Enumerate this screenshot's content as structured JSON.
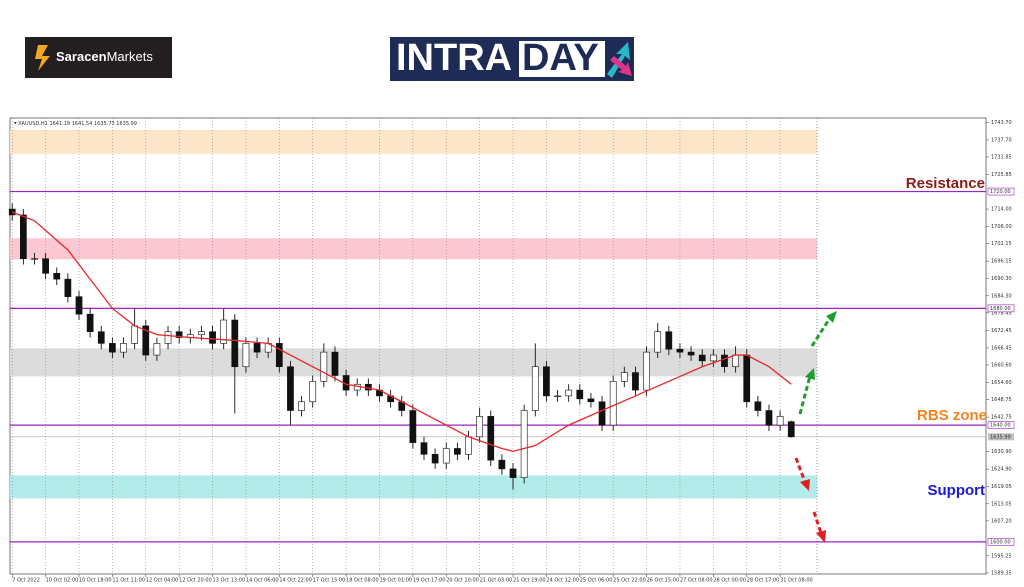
{
  "logos": {
    "brand_bold": "Saracen",
    "brand_light": "Markets",
    "banner_left": "INTRA",
    "banner_right": "DAY"
  },
  "chart_data": {
    "type": "candlestick",
    "symbol": "XAUUSD,H1",
    "up_color": "#ffffff",
    "down_color": "#111111",
    "outline_color": "#111111",
    "x": [
      0,
      1,
      2,
      3,
      4,
      5,
      6,
      7,
      8,
      9,
      10,
      11,
      12,
      13,
      14,
      15,
      16,
      17,
      18,
      19,
      20,
      21,
      22,
      23,
      24,
      25,
      26,
      27,
      28,
      29,
      30,
      31,
      32,
      33,
      34,
      35,
      36,
      37,
      38,
      39,
      40,
      41,
      42,
      43,
      44,
      45,
      46,
      47,
      48,
      49,
      50,
      51,
      52,
      53,
      54,
      55,
      56,
      57,
      58,
      59,
      60,
      61,
      62,
      63,
      64,
      65,
      66,
      67,
      68,
      69,
      70
    ],
    "open": [
      1714,
      1712,
      1697,
      1697,
      1692,
      1690,
      1684,
      1678,
      1672,
      1668,
      1665,
      1668,
      1674,
      1664,
      1668,
      1672,
      1670,
      1671,
      1672,
      1668,
      1676,
      1660,
      1668,
      1665,
      1668,
      1660,
      1645,
      1648,
      1655,
      1665,
      1657,
      1652,
      1654,
      1652,
      1650,
      1648,
      1645,
      1634,
      1630,
      1627,
      1632,
      1630,
      1636,
      1643,
      1628,
      1625,
      1622,
      1645,
      1660,
      1650,
      1650,
      1652,
      1649,
      1648,
      1640,
      1655,
      1658,
      1652,
      1665,
      1672,
      1666,
      1665,
      1664,
      1662,
      1664,
      1660,
      1664,
      1648,
      1645,
      1640,
      1641.18
    ],
    "high": [
      1716,
      1714,
      1699,
      1699,
      1694,
      1692,
      1686,
      1680,
      1674,
      1670,
      1670,
      1680,
      1676,
      1670,
      1674,
      1674,
      1673,
      1674,
      1674,
      1680,
      1678,
      1670,
      1670,
      1670,
      1670,
      1662,
      1650,
      1657,
      1668,
      1667,
      1659,
      1656,
      1656,
      1654,
      1652,
      1650,
      1647,
      1636,
      1632,
      1634,
      1634,
      1638,
      1646,
      1645,
      1630,
      1627,
      1647,
      1668,
      1662,
      1652,
      1654,
      1654,
      1651,
      1650,
      1657,
      1660,
      1660,
      1667,
      1675,
      1674,
      1668,
      1667,
      1666,
      1666,
      1666,
      1667,
      1666,
      1650,
      1647,
      1645,
      1641.54
    ],
    "low": [
      1710,
      1695,
      1695,
      1690,
      1688,
      1682,
      1676,
      1670,
      1666,
      1663,
      1663,
      1666,
      1662,
      1662,
      1666,
      1668,
      1668,
      1669,
      1666,
      1666,
      1644,
      1658,
      1663,
      1663,
      1658,
      1640,
      1643,
      1646,
      1653,
      1655,
      1650,
      1650,
      1650,
      1648,
      1646,
      1643,
      1632,
      1628,
      1625,
      1625,
      1628,
      1628,
      1634,
      1626,
      1623,
      1618,
      1620,
      1643,
      1648,
      1648,
      1648,
      1647,
      1646,
      1638,
      1638,
      1653,
      1650,
      1650,
      1663,
      1664,
      1663,
      1662,
      1660,
      1660,
      1658,
      1658,
      1646,
      1643,
      1638,
      1638,
      1635.73
    ],
    "close": [
      1712,
      1697,
      1697,
      1692,
      1690,
      1684,
      1678,
      1672,
      1668,
      1665,
      1668,
      1674,
      1664,
      1668,
      1672,
      1670,
      1671,
      1672,
      1668,
      1676,
      1660,
      1668,
      1665,
      1668,
      1660,
      1645,
      1648,
      1655,
      1665,
      1657,
      1652,
      1654,
      1652,
      1650,
      1648,
      1645,
      1634,
      1630,
      1627,
      1632,
      1630,
      1636,
      1643,
      1628,
      1625,
      1622,
      1645,
      1660,
      1650,
      1650,
      1652,
      1649,
      1648,
      1640,
      1655,
      1658,
      1652,
      1665,
      1672,
      1666,
      1665,
      1664,
      1662,
      1664,
      1660,
      1664,
      1648,
      1645,
      1640,
      1643,
      1635.99
    ],
    "moving_average": {
      "color": "#e8262a",
      "x": [
        0,
        2,
        5,
        7,
        9,
        11,
        13,
        16,
        20,
        23,
        26,
        28,
        30,
        33,
        35,
        38,
        41,
        44,
        45,
        47,
        50,
        53,
        56,
        59,
        62,
        65,
        66,
        68,
        70
      ],
      "values": [
        1713,
        1710,
        1700,
        1690,
        1680,
        1674,
        1671,
        1670,
        1669,
        1668,
        1662,
        1658,
        1654,
        1652,
        1648,
        1642,
        1636,
        1632,
        1631,
        1633,
        1640,
        1645,
        1650,
        1655,
        1660,
        1664,
        1664,
        1660,
        1654
      ]
    },
    "xlim": [
      -0.2,
      87.5
    ],
    "ylim": [
      1589,
      1745.2
    ],
    "grid": true,
    "xticks": [
      {
        "value": 0,
        "label": "7 Oct 2022"
      },
      {
        "value": 3,
        "label": "10 Oct 02:00"
      },
      {
        "value": 6,
        "label": "10 Oct 18:00"
      },
      {
        "value": 9,
        "label": "11 Oct 11:00"
      },
      {
        "value": 12,
        "label": "12 Oct 04:00"
      },
      {
        "value": 15,
        "label": "12 Oct 20:00"
      },
      {
        "value": 18,
        "label": "13 Oct 13:00"
      },
      {
        "value": 21,
        "label": "14 Oct 06:00"
      },
      {
        "value": 24,
        "label": "14 Oct 22:00"
      },
      {
        "value": 27,
        "label": "17 Oct 15:00"
      },
      {
        "value": 30,
        "label": "18 Oct 08:00"
      },
      {
        "value": 33,
        "label": "19 Oct 01:00"
      },
      {
        "value": 36,
        "label": "19 Oct 17:00"
      },
      {
        "value": 39,
        "label": "20 Oct 10:00"
      },
      {
        "value": 42,
        "label": "21 Oct 03:00"
      },
      {
        "value": 45,
        "label": "21 Oct 19:00"
      },
      {
        "value": 48,
        "label": "24 Oct 12:00"
      },
      {
        "value": 51,
        "label": "25 Oct 06:00"
      },
      {
        "value": 54,
        "label": "25 Oct 22:00"
      },
      {
        "value": 57,
        "label": "26 Oct 15:00"
      },
      {
        "value": 60,
        "label": "27 Oct 08:00"
      },
      {
        "value": 63,
        "label": "28 Oct 00:00"
      },
      {
        "value": 66,
        "label": "28 Oct 17:00"
      },
      {
        "value": 69,
        "label": "31 Oct 08:00"
      }
    ],
    "yticks": [
      {
        "value": 1743.7,
        "label": "1743.70"
      },
      {
        "value": 1737.7,
        "label": "1737.70"
      },
      {
        "value": 1731.85,
        "label": "1731.85"
      },
      {
        "value": 1725.85,
        "label": "1725.85"
      },
      {
        "value": 1714,
        "label": "1714.00"
      },
      {
        "value": 1708,
        "label": "1708.00"
      },
      {
        "value": 1702.15,
        "label": "1702.15"
      },
      {
        "value": 1696.15,
        "label": "1696.15"
      },
      {
        "value": 1690.3,
        "label": "1690.30"
      },
      {
        "value": 1684.3,
        "label": "1684.30"
      },
      {
        "value": 1678.45,
        "label": "1678.45"
      },
      {
        "value": 1672.45,
        "label": "1672.45"
      },
      {
        "value": 1666.45,
        "label": "1666.45"
      },
      {
        "value": 1660.6,
        "label": "1660.60"
      },
      {
        "value": 1654.6,
        "label": "1654.60"
      },
      {
        "value": 1648.75,
        "label": "1648.75"
      },
      {
        "value": 1642.75,
        "label": "1642.75"
      },
      {
        "value": 1630.9,
        "label": "1630.90"
      },
      {
        "value": 1624.9,
        "label": "1624.90"
      },
      {
        "value": 1619.05,
        "label": "1619.05"
      },
      {
        "value": 1613.05,
        "label": "1613.05"
      },
      {
        "value": 1607.2,
        "label": "1607.20"
      },
      {
        "value": 1595.25,
        "label": "1595.25"
      },
      {
        "value": 1589.35,
        "label": "1589.35"
      }
    ],
    "levels": [
      {
        "value": 1720,
        "label": "1720.00"
      },
      {
        "value": 1680,
        "label": "1680.00"
      },
      {
        "value": 1640,
        "label": "1640.00"
      },
      {
        "value": 1600,
        "label": "1600.00"
      }
    ],
    "level_color": "#a020c0",
    "zones": [
      {
        "from": 1732.9,
        "to": 1741.1,
        "color": "#fde6c8"
      },
      {
        "from": 1696.8,
        "to": 1704,
        "color": "#fbc8d2"
      },
      {
        "from": 1656.7,
        "to": 1666.3,
        "color": "#dcdcdc"
      },
      {
        "from": 1614.9,
        "to": 1622.8,
        "color": "#b3ebeb"
      }
    ],
    "annotations": [
      {
        "text": "Resistance",
        "color": "#8b1a1a"
      },
      {
        "text": "RBS zone",
        "color": "#f58220"
      },
      {
        "text": "Support",
        "color": "#1a1ad0"
      }
    ]
  }
}
